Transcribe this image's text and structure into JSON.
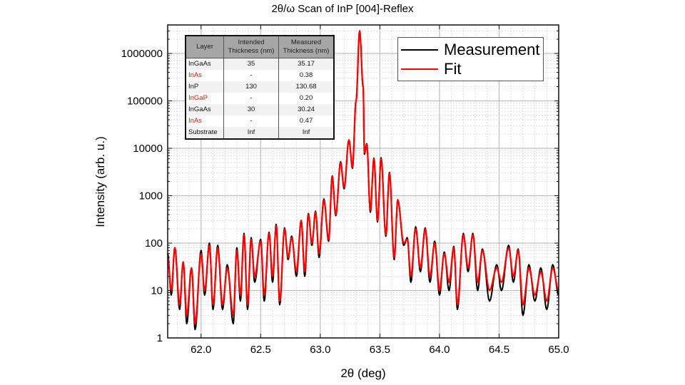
{
  "chart_data": {
    "type": "line",
    "title": "2θ/ω  Scan of InP [004]-Reflex",
    "xlabel": "2θ (deg)",
    "ylabel": "Intensity (arb. u.)",
    "xlim": [
      61.72,
      65.0
    ],
    "ylim": [
      1,
      4000000
    ],
    "yscale": "log",
    "grid": true,
    "legend_placement": "top-right",
    "x_ticks": [
      "62.0",
      "62.5",
      "63.0",
      "63.5",
      "64.0",
      "64.5",
      "65.0"
    ],
    "y_ticks": [
      "1",
      "10",
      "100",
      "1000",
      "10000",
      "100000",
      "1000000"
    ],
    "colors": {
      "Measurement": "#000000",
      "Fit": "#ff0000"
    },
    "x": [
      61.72,
      61.75,
      61.78,
      61.82,
      61.85,
      61.88,
      61.92,
      61.95,
      62.0,
      62.03,
      62.07,
      62.1,
      62.14,
      62.18,
      62.22,
      62.27,
      62.3,
      62.33,
      62.36,
      62.39,
      62.42,
      62.45,
      62.5,
      62.53,
      62.57,
      62.6,
      62.63,
      62.66,
      62.7,
      62.73,
      62.76,
      62.8,
      62.84,
      62.87,
      62.9,
      62.93,
      62.96,
      62.99,
      63.03,
      63.07,
      63.1,
      63.13,
      63.17,
      63.2,
      63.24,
      63.27,
      63.3,
      63.33,
      63.36,
      63.37,
      63.39,
      63.42,
      63.45,
      63.48,
      63.51,
      63.55,
      63.58,
      63.62,
      63.65,
      63.7,
      63.73,
      63.76,
      63.8,
      63.84,
      63.88,
      63.92,
      63.96,
      64.0,
      64.04,
      64.08,
      64.12,
      64.15,
      64.2,
      64.24,
      64.28,
      64.32,
      64.36,
      64.42,
      64.48,
      64.52,
      64.58,
      64.62,
      64.66,
      64.7,
      64.75,
      64.8,
      64.85,
      64.9,
      64.95,
      65.0
    ],
    "series": [
      {
        "name": "Measurement",
        "values": [
          60,
          8,
          80,
          4,
          40,
          2,
          30,
          1.5,
          70,
          8,
          100,
          4,
          90,
          4,
          35,
          2,
          80,
          6,
          160,
          4,
          130,
          15,
          120,
          6,
          170,
          15,
          250,
          5,
          210,
          45,
          140,
          20,
          300,
          20,
          420,
          90,
          470,
          50,
          850,
          110,
          2600,
          380,
          5200,
          1400,
          15000,
          3800,
          100000,
          3000000,
          190000,
          7500,
          12500,
          450,
          6200,
          280,
          6300,
          140,
          3100,
          45,
          820,
          90,
          130,
          15,
          220,
          25,
          210,
          15,
          110,
          8,
          65,
          10,
          85,
          4,
          160,
          25,
          160,
          10,
          75,
          6,
          35,
          10,
          90,
          15,
          75,
          3,
          35,
          6,
          30,
          4,
          35,
          8
        ]
      },
      {
        "name": "Fit",
        "values": [
          50,
          10,
          80,
          5,
          40,
          3,
          30,
          2,
          60,
          10,
          90,
          5,
          80,
          5,
          30,
          3,
          70,
          8,
          150,
          5,
          120,
          20,
          110,
          8,
          160,
          20,
          230,
          6,
          200,
          50,
          130,
          25,
          300,
          25,
          400,
          100,
          450,
          60,
          800,
          120,
          2500,
          400,
          5000,
          1500,
          15000,
          4000,
          100000,
          3000000,
          200000,
          8000,
          12000,
          500,
          6000,
          300,
          6000,
          150,
          3000,
          50,
          800,
          100,
          120,
          20,
          200,
          30,
          200,
          20,
          100,
          10,
          60,
          15,
          80,
          5,
          150,
          30,
          150,
          15,
          70,
          10,
          30,
          15,
          80,
          20,
          70,
          5,
          30,
          8,
          25,
          6,
          30,
          10
        ]
      }
    ]
  },
  "table": {
    "headers": [
      "Layer",
      "Intended Thickness (nm)",
      "Measured Thickness (nm)"
    ],
    "rows": [
      {
        "layer": "InGaAs",
        "intended": "35",
        "measured": "35.17",
        "highlight": false
      },
      {
        "layer": "InAs",
        "intended": "-",
        "measured": "0.38",
        "highlight": true
      },
      {
        "layer": "InP",
        "intended": "130",
        "measured": "130.68",
        "highlight": false
      },
      {
        "layer": "InGaP",
        "intended": "-",
        "measured": "0.20",
        "highlight": true
      },
      {
        "layer": "InGaAs",
        "intended": "30",
        "measured": "30.24",
        "highlight": false
      },
      {
        "layer": "InAs",
        "intended": "-",
        "measured": "0.47",
        "highlight": true
      },
      {
        "layer": "Substrate",
        "intended": "Inf",
        "measured": "Inf",
        "highlight": false
      }
    ]
  }
}
